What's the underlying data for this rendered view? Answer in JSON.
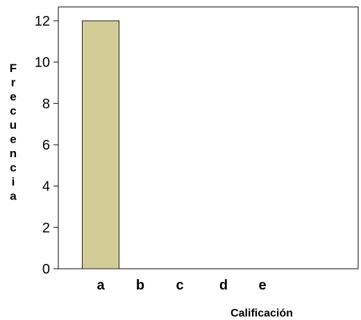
{
  "chart_data": {
    "type": "bar",
    "categories": [
      "a",
      "b",
      "c",
      "d",
      "e"
    ],
    "values": [
      12,
      0,
      0,
      0,
      0
    ],
    "xlabel": "Calificación",
    "ylabel": "Frecuencia",
    "ylim": [
      0,
      12
    ],
    "yticks": [
      "0",
      "2",
      "4",
      "6",
      "8",
      "10",
      "12"
    ],
    "grid": false,
    "bar_color": "#d4cc96",
    "bar_edge_color": "#1a1a1a"
  }
}
